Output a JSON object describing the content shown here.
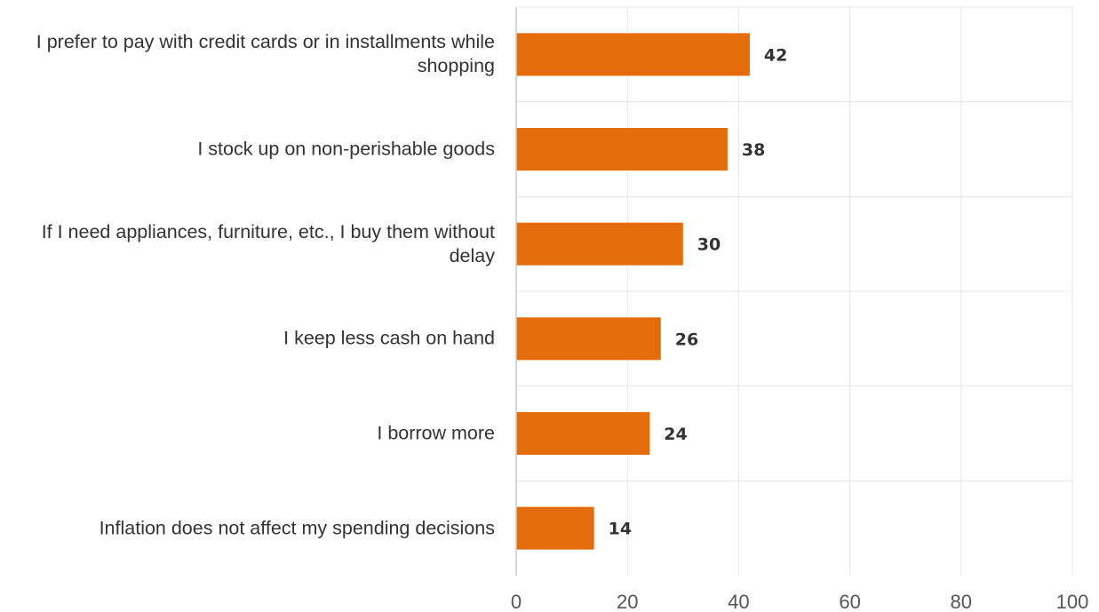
{
  "chart_data": {
    "type": "bar",
    "orientation": "horizontal",
    "title": "",
    "xlabel": "",
    "ylabel": "",
    "categories": [
      "I prefer to pay with credit cards or in installments while shopping",
      "I stock up on non-perishable goods",
      "If I need appliances, furniture, etc., I buy them without delay",
      "I keep less cash on hand",
      "I borrow more",
      "Inflation does not affect my spending decisions"
    ],
    "values": [
      42,
      38,
      30,
      26,
      24,
      14
    ],
    "xlim": [
      0,
      100
    ],
    "xticks": [
      0,
      20,
      40,
      60,
      80,
      100
    ],
    "grid": true,
    "data_labels": true,
    "bar_color": "#e46c0a",
    "label_color": "#333333",
    "grid_color": "#e6e6e6",
    "axis_color": "#cccccc"
  }
}
